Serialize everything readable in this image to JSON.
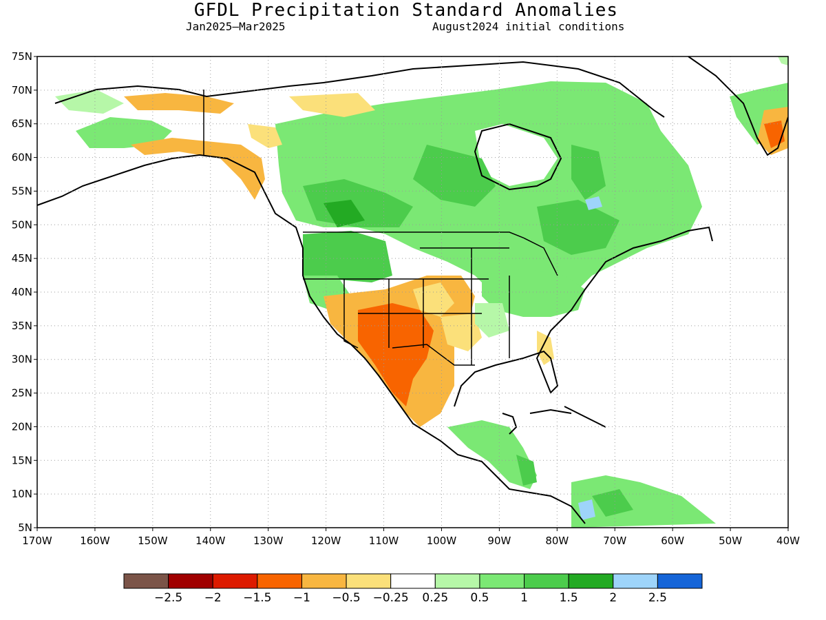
{
  "title": "GFDL Precipitation Standard Anomalies",
  "subtitle_left": "Jan2025–Mar2025",
  "subtitle_right": "August2024 initial conditions",
  "lat_ticks": [
    "75N",
    "70N",
    "65N",
    "60N",
    "55N",
    "50N",
    "45N",
    "40N",
    "35N",
    "30N",
    "25N",
    "20N",
    "15N",
    "10N",
    "5N"
  ],
  "lon_ticks": [
    "170W",
    "160W",
    "150W",
    "140W",
    "130W",
    "120W",
    "110W",
    "100W",
    "90W",
    "80W",
    "70W",
    "60W",
    "50W",
    "40W"
  ],
  "colorbar": {
    "colors": [
      "#7b5448",
      "#a00000",
      "#dd1a00",
      "#f86400",
      "#f8b640",
      "#fbe07a",
      "#ffffff",
      "#b6f7a8",
      "#7be874",
      "#4ccc4c",
      "#23aa23",
      "#9ed4fa",
      "#1565d8"
    ],
    "labels": [
      "−2.5",
      "−2",
      "−1.5",
      "−1",
      "−0.5",
      "−0.25",
      "0.25",
      "0.5",
      "1",
      "1.5",
      "2",
      "2.5"
    ]
  },
  "anomaly_colors": {
    "light_green": "#b6f7a8",
    "green": "#7be874",
    "mid_green": "#4ccc4c",
    "dark_green": "#23aa23",
    "light_blue": "#9ed4fa",
    "light_yellow": "#fbe07a",
    "orange_light": "#f8b640",
    "orange": "#f86400",
    "red": "#dd1a00"
  }
}
